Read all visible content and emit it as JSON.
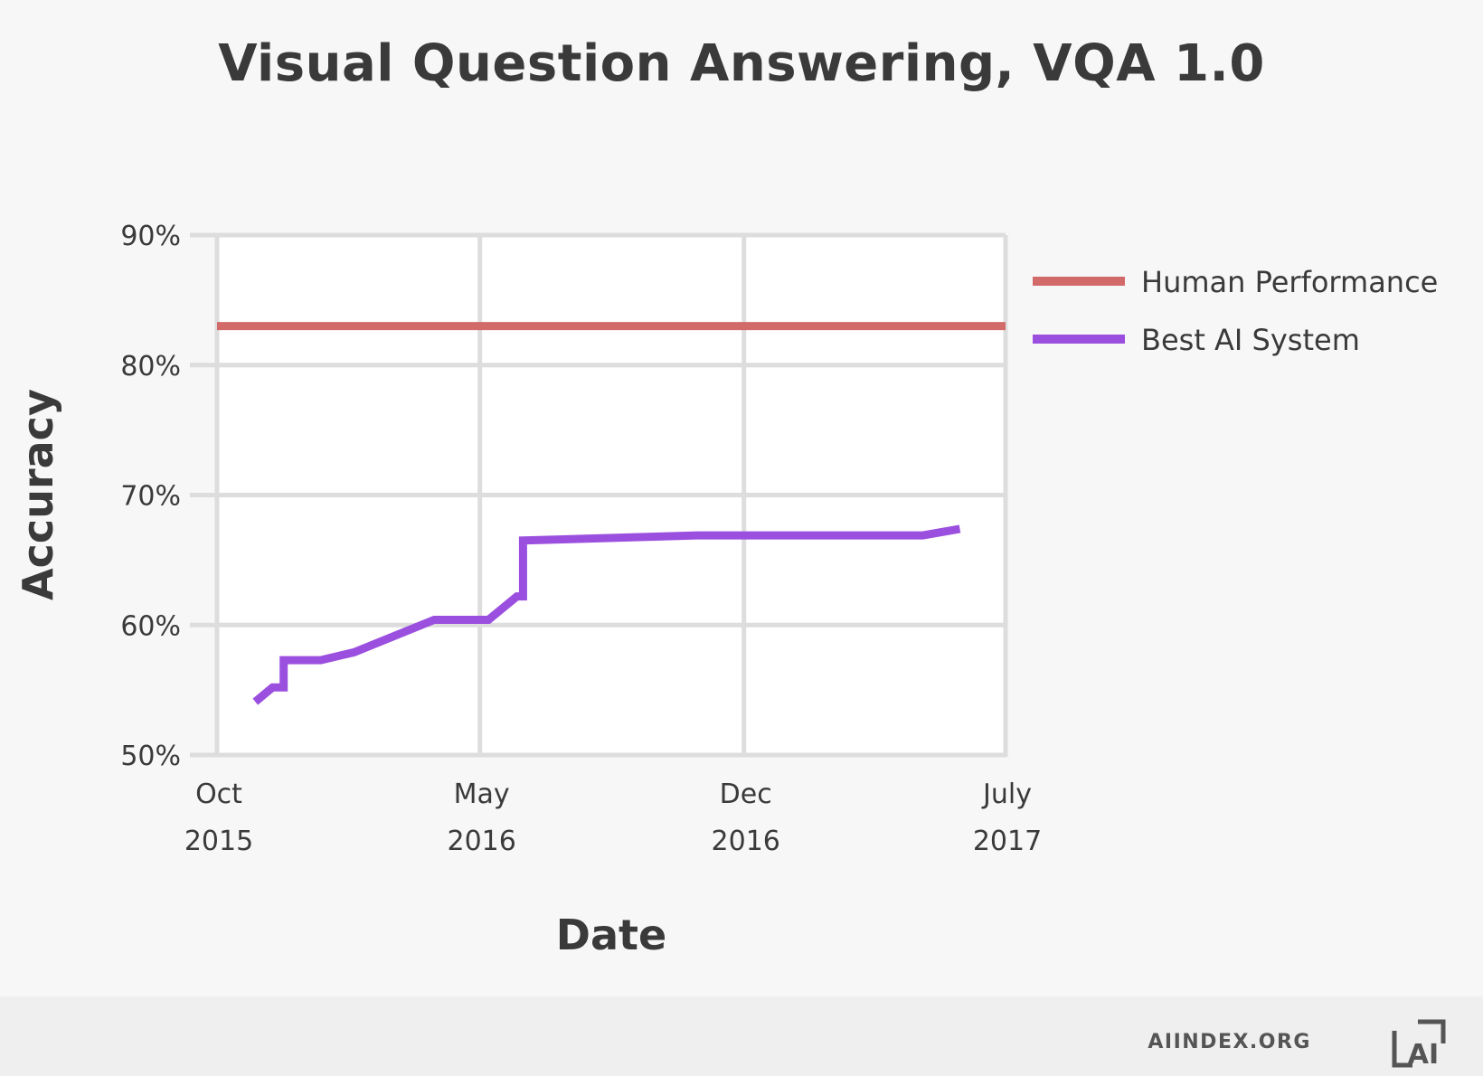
{
  "chart_data": {
    "type": "line",
    "title": "Visual Question Answering, VQA 1.0",
    "xlabel": "Date",
    "ylabel": "Accuracy",
    "ylim": [
      50,
      90
    ],
    "yticks": [
      {
        "value": 50,
        "label": "50%"
      },
      {
        "value": 60,
        "label": "60%"
      },
      {
        "value": 70,
        "label": "70%"
      },
      {
        "value": 80,
        "label": "80%"
      },
      {
        "value": 90,
        "label": "90%"
      }
    ],
    "xlim": [
      "2015-10-01",
      "2017-07-01"
    ],
    "xticks": [
      {
        "date": "2015-10-01",
        "month": "Oct",
        "year": "2015"
      },
      {
        "date": "2016-05-01",
        "month": "May",
        "year": "2016"
      },
      {
        "date": "2016-12-01",
        "month": "Dec",
        "year": "2016"
      },
      {
        "date": "2017-07-01",
        "month": "July",
        "year": "2017"
      }
    ],
    "grid": true,
    "legend_position": "right",
    "series": [
      {
        "name": "Human Performance",
        "color": "#d36a6a",
        "points": [
          {
            "x": "2015-10-01",
            "y": 83.0
          },
          {
            "x": "2017-07-01",
            "y": 83.0
          }
        ]
      },
      {
        "name": "Best AI System",
        "color": "#9b4fdf",
        "points": [
          {
            "x": "2015-11-01",
            "y": 54.1
          },
          {
            "x": "2015-11-15",
            "y": 55.2
          },
          {
            "x": "2015-11-24",
            "y": 55.2
          },
          {
            "x": "2015-11-24",
            "y": 57.3
          },
          {
            "x": "2015-12-24",
            "y": 57.3
          },
          {
            "x": "2016-01-20",
            "y": 57.9
          },
          {
            "x": "2016-03-25",
            "y": 60.4
          },
          {
            "x": "2016-05-08",
            "y": 60.4
          },
          {
            "x": "2016-05-31",
            "y": 62.2
          },
          {
            "x": "2016-06-05",
            "y": 62.2
          },
          {
            "x": "2016-06-05",
            "y": 66.5
          },
          {
            "x": "2016-10-25",
            "y": 66.9
          },
          {
            "x": "2017-04-25",
            "y": 66.9
          },
          {
            "x": "2017-05-25",
            "y": 67.4
          }
        ]
      }
    ]
  },
  "footer": {
    "site": "AIINDEX.ORG",
    "logo_text": "AI"
  }
}
